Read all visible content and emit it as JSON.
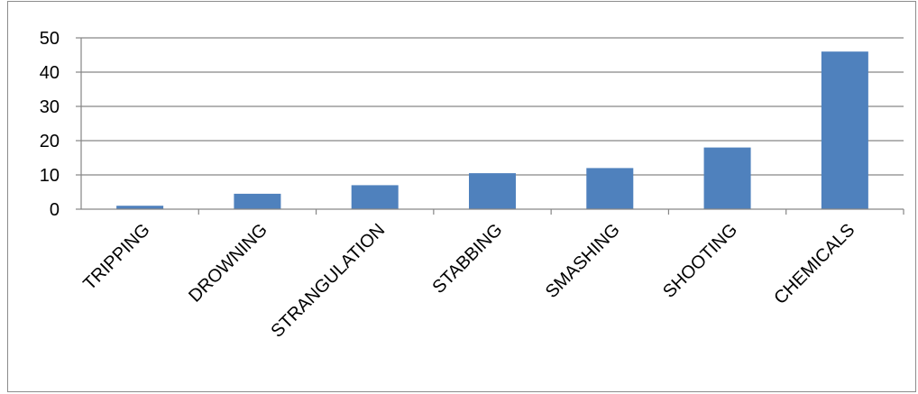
{
  "chart_data": {
    "type": "bar",
    "categories": [
      "TRIPPING",
      "DROWNING",
      "STRANGULATION",
      "STABBING",
      "SMASHING",
      "SHOOTING",
      "CHEMICALS"
    ],
    "values": [
      1,
      4.5,
      7,
      10.5,
      12,
      18,
      46
    ],
    "ylim": [
      0,
      50
    ],
    "yticks": [
      0,
      10,
      20,
      30,
      40,
      50
    ],
    "grid": true,
    "legend": "none",
    "colors": {
      "bar": "#4f81bd",
      "grid": "#868686",
      "axis": "#868686"
    }
  }
}
